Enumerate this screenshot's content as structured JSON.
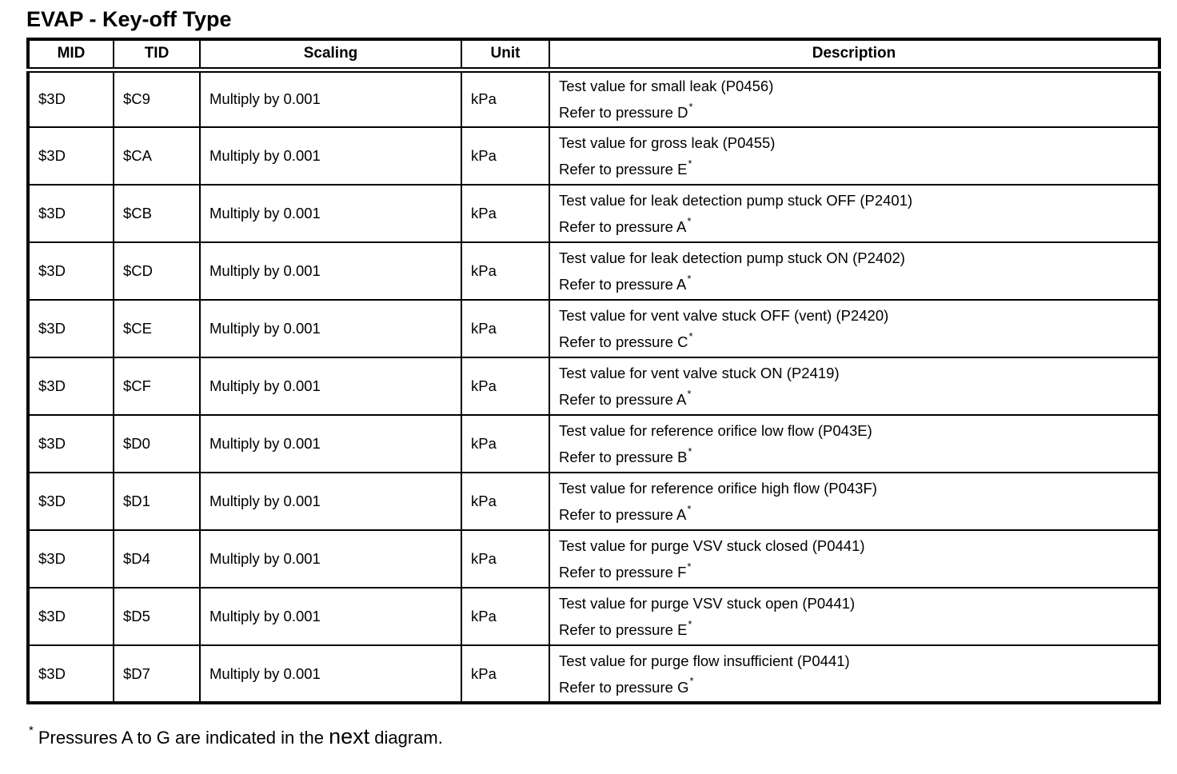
{
  "title": "EVAP - Key-off Type",
  "table": {
    "headers": [
      "MID",
      "TID",
      "Scaling",
      "Unit",
      "Description"
    ],
    "rows": [
      {
        "mid": "$3D",
        "tid": "$C9",
        "scaling": "Multiply by 0.001",
        "unit": "kPa",
        "desc_line1": "Test value for small leak (P0456)",
        "desc_line2": "Refer to pressure D",
        "marker": "*"
      },
      {
        "mid": "$3D",
        "tid": "$CA",
        "scaling": "Multiply by 0.001",
        "unit": "kPa",
        "desc_line1": "Test value for gross leak (P0455)",
        "desc_line2": "Refer to pressure E",
        "marker": "*"
      },
      {
        "mid": "$3D",
        "tid": "$CB",
        "scaling": "Multiply by 0.001",
        "unit": "kPa",
        "desc_line1": "Test value for leak detection pump stuck OFF (P2401)",
        "desc_line2": "Refer to pressure A",
        "marker": "*"
      },
      {
        "mid": "$3D",
        "tid": "$CD",
        "scaling": "Multiply by 0.001",
        "unit": "kPa",
        "desc_line1": "Test value for leak detection pump stuck ON (P2402)",
        "desc_line2": "Refer to pressure A",
        "marker": "*"
      },
      {
        "mid": "$3D",
        "tid": "$CE",
        "scaling": "Multiply by 0.001",
        "unit": "kPa",
        "desc_line1": "Test value for vent valve stuck OFF (vent) (P2420)",
        "desc_line2": "Refer to pressure C",
        "marker": "*"
      },
      {
        "mid": "$3D",
        "tid": "$CF",
        "scaling": "Multiply by 0.001",
        "unit": "kPa",
        "desc_line1": "Test value for vent valve stuck ON (P2419)",
        "desc_line2": "Refer to pressure A",
        "marker": "*"
      },
      {
        "mid": "$3D",
        "tid": "$D0",
        "scaling": "Multiply by 0.001",
        "unit": "kPa",
        "desc_line1": "Test value for reference orifice low flow (P043E)",
        "desc_line2": "Refer to pressure B",
        "marker": "*"
      },
      {
        "mid": "$3D",
        "tid": "$D1",
        "scaling": "Multiply by 0.001",
        "unit": "kPa",
        "desc_line1": "Test value for reference orifice high flow (P043F)",
        "desc_line2": "Refer to pressure A",
        "marker": "*"
      },
      {
        "mid": "$3D",
        "tid": "$D4",
        "scaling": "Multiply by 0.001",
        "unit": "kPa",
        "desc_line1": "Test value for purge VSV stuck closed (P0441)",
        "desc_line2": "Refer to pressure F",
        "marker": "*"
      },
      {
        "mid": "$3D",
        "tid": "$D5",
        "scaling": "Multiply by 0.001",
        "unit": "kPa",
        "desc_line1": "Test value for purge VSV stuck open (P0441)",
        "desc_line2": "Refer to pressure E",
        "marker": "*"
      },
      {
        "mid": "$3D",
        "tid": "$D7",
        "scaling": "Multiply by 0.001",
        "unit": "kPa",
        "desc_line1": "Test value for purge flow insufficient (P0441)",
        "desc_line2": "Refer to pressure G",
        "marker": "*"
      }
    ]
  },
  "footnote": {
    "marker": "*",
    "text_before": "Pressures A to G are indicated in the",
    "emphasis": "next",
    "text_after": "diagram."
  },
  "colors": {
    "text": "#000000",
    "border": "#000000",
    "background": "#ffffff"
  }
}
